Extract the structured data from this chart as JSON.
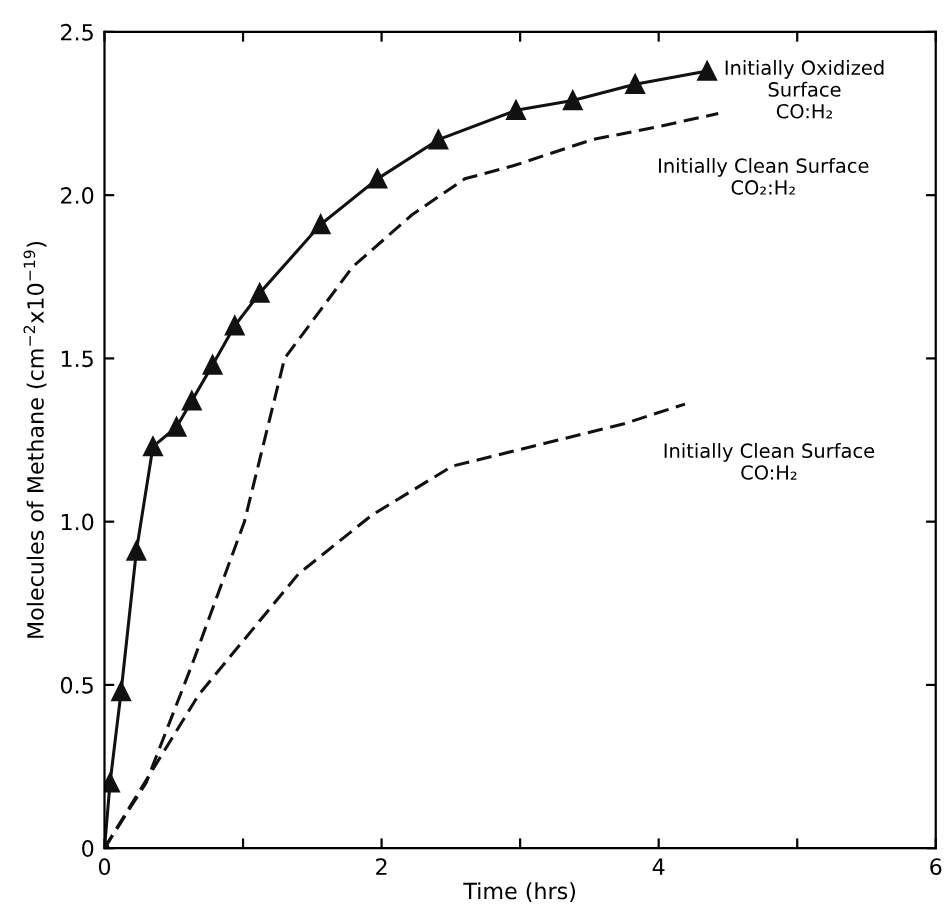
{
  "chart_data": {
    "type": "line",
    "xlabel": "Time (hrs)",
    "ylabel": "Molecules of Methane (cm$^{−2}$x10$^{−19}$)",
    "xlim": [
      0,
      6
    ],
    "xticks": [
      0,
      2,
      4,
      6,
      {
        "value": 1,
        "label": null
      },
      {
        "value": 3,
        "label": null
      },
      {
        "value": 5,
        "label": null
      }
    ],
    "ylim": [
      0,
      2.5
    ],
    "yticks": [
      0,
      0.5,
      {
        "value": 1,
        "label": "1.0"
      },
      1.5,
      {
        "value": 2,
        "label": "2.0"
      },
      2.5
    ],
    "grid": false,
    "legend": false,
    "series": [
      {
        "color": "#111111",
        "marker": "triangle",
        "line_style": "solid",
        "x": [
          0,
          0.04,
          0.12,
          0.23,
          0.35,
          0.52,
          0.63,
          0.78,
          0.94,
          1.12,
          1.56,
          1.97,
          2.41,
          2.97,
          3.38,
          3.83,
          4.35
        ],
        "values": [
          0,
          0.2,
          0.48,
          0.91,
          1.23,
          1.29,
          1.37,
          1.48,
          1.6,
          1.7,
          1.91,
          2.05,
          2.17,
          2.26,
          2.29,
          2.34,
          2.38
        ]
      },
      {
        "color": "#111111",
        "marker": "none",
        "line_style": "dashed",
        "x": [
          0,
          0.3,
          0.63,
          1.01,
          1.3,
          1.79,
          2.22,
          2.6,
          2.95,
          3.52,
          4.0,
          4.43
        ],
        "values": [
          0,
          0.2,
          0.56,
          1.0,
          1.5,
          1.78,
          1.94,
          2.05,
          2.09,
          2.17,
          2.21,
          2.25
        ]
      },
      {
        "color": "#111111",
        "marker": "none",
        "line_style": "dashed",
        "x": [
          0,
          0.68,
          1.4,
          1.93,
          2.51,
          3.18,
          3.75,
          4.19
        ],
        "values": [
          0,
          0.47,
          0.84,
          1.02,
          1.17,
          1.24,
          1.3,
          1.36
        ]
      }
    ],
    "annotations": [
      {
        "text": "Initially Oxidized\nSurface\nCO:H₂",
        "x": 4.35,
        "y": 2.38
      },
      {
        "text": "Initially Clean Surface\nCO₂:H₂",
        "x": 4.43,
        "y": 2.25
      },
      {
        "text": "Initially Clean Surface\nCO:H₂",
        "x": 4.19,
        "y": 1.36
      }
    ]
  }
}
